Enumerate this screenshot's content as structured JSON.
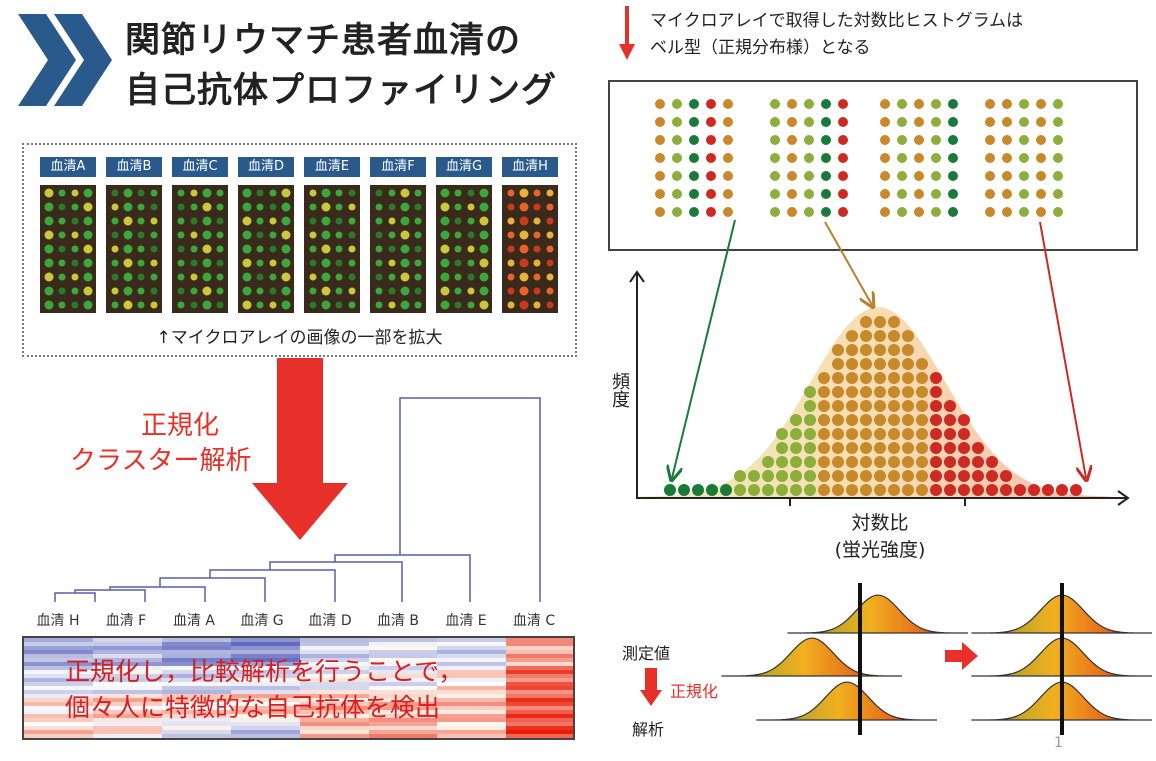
{
  "title": {
    "line1": "関節リウマチ患者血清の",
    "line2": "自己抗体プロファイリング"
  },
  "serum_labels": [
    "血清A",
    "血清B",
    "血清C",
    "血清D",
    "血清E",
    "血清F",
    "血清G",
    "血清H"
  ],
  "microarray_caption": "↑マイクロアレイの画像の一部を拡大",
  "process": {
    "line1": "正規化",
    "line2": "クラスター解析"
  },
  "dendrogram_labels": [
    "血清 H",
    "血清 F",
    "血清 A",
    "血清 G",
    "血清 D",
    "血清 B",
    "血清 E",
    "血清 C"
  ],
  "heatmap_text": {
    "line1": "正規化し，比較解析を行うことで，",
    "line2": "個々人に特徴的な自己抗体を検出"
  },
  "histogram_note": {
    "line1": "マイクロアレイで取得した対数比ヒストグラムは",
    "line2": "ベル型（正規分布様）となる"
  },
  "histogram": {
    "ylabel": "頻度",
    "xlabel": "対数比",
    "xlabel2": "(蛍光強度)"
  },
  "normalization": {
    "measured": "測定値",
    "normalize": "正規化",
    "analysis": "解析"
  },
  "page_number": "1",
  "colors": {
    "brand_blue": "#2a5a8c",
    "accent_red": "#e8302a",
    "green": "#1a7a3a",
    "orange": "#c8892a",
    "dark_red": "#cc2a22"
  }
}
